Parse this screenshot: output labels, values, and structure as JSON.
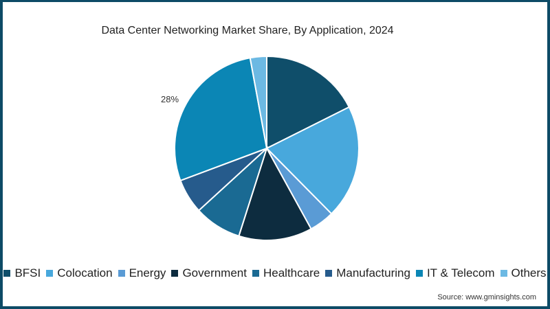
{
  "chart_data": {
    "type": "pie",
    "title": "Data Center Networking Market Share, By  Application, 2024",
    "categories": [
      "BFSI",
      "Colocation",
      "Energy",
      "Government",
      "Healthcare",
      "Manufacturing",
      "IT & Telecom",
      "Others"
    ],
    "values": [
      17.6,
      20.0,
      4.4,
      12.9,
      8.3,
      6.1,
      27.8,
      2.9
    ],
    "colors": [
      "#0f4e6a",
      "#48a8dc",
      "#5a9bd5",
      "#0d2c3f",
      "#1a6a93",
      "#265b8c",
      "#0b86b5",
      "#6cb9e3"
    ],
    "annotations": [
      {
        "category": "IT & Telecom",
        "text": "28%"
      }
    ],
    "legend_position": "bottom",
    "start_angle": 0,
    "direction": "clockwise"
  },
  "title": "Data Center Networking Market Share, By  Application, 2024",
  "label_it_telecom": "28%",
  "legend": [
    {
      "label": "BFSI",
      "color": "#0f4e6a"
    },
    {
      "label": "Colocation",
      "color": "#48a8dc"
    },
    {
      "label": "Energy",
      "color": "#5a9bd5"
    },
    {
      "label": "Government",
      "color": "#0d2c3f"
    },
    {
      "label": "Healthcare",
      "color": "#1a6a93"
    },
    {
      "label": "Manufacturing",
      "color": "#265b8c"
    },
    {
      "label": "IT & Telecom",
      "color": "#0b86b5"
    },
    {
      "label": "Others",
      "color": "#6cb9e3"
    }
  ],
  "source": "Source: www.gminsights.com",
  "frame_color": "#0d4b66"
}
